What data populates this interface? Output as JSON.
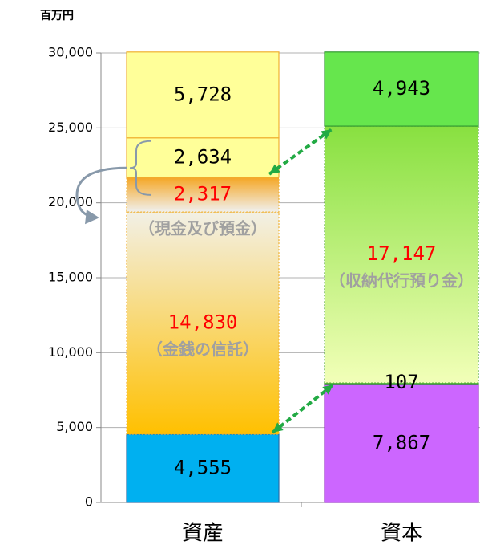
{
  "chart_data": {
    "type": "stacked_bar",
    "y_label": "百万円",
    "ylim": [
      0,
      30000
    ],
    "yticks": [
      0,
      {
        "value": 5000,
        "label": "5,000"
      },
      {
        "value": 10000,
        "label": "10,000"
      },
      {
        "value": 15000,
        "label": "15,000"
      },
      {
        "value": 20000,
        "label": "20,000"
      },
      {
        "value": 25000,
        "label": "25,000"
      },
      {
        "value": 30000,
        "label": "30,000"
      }
    ],
    "grid": true,
    "categories": [
      "資産",
      "資本"
    ],
    "stacks": [
      {
        "segments": [
          {
            "value": 4555,
            "value_label": "4,555",
            "color": "#00b0f0",
            "border": "#2a6fa8",
            "label_color": "#000"
          },
          {
            "value": 14830,
            "value_label": "14,830",
            "color": [
              "#f2f0e6",
              "#ffc000"
            ],
            "border": "#f0b030",
            "label_color": "#ff0000",
            "annotation": "（金銭の信託）"
          },
          {
            "value": 2317,
            "value_label": "2,317",
            "color": [
              "#f5a623",
              "#f0f0ee"
            ],
            "border": "#f0b030",
            "label_color": "#ff0000",
            "annotation": "（現金及び預金）"
          },
          {
            "value": 2634,
            "value_label": "2,634",
            "color": "#ffff99",
            "border": "#f0b030",
            "label_color": "#000"
          },
          {
            "value": 5728,
            "value_label": "5,728",
            "color": "#ffff99",
            "border": "#f0b030",
            "label_color": "#000"
          }
        ]
      },
      {
        "segments": [
          {
            "value": 7867,
            "value_label": "7,867",
            "color": "#cc66ff",
            "border": "#9933cc",
            "label_color": "#000"
          },
          {
            "value": 107,
            "value_label": "107",
            "color": "#66dd44",
            "border": "#339933",
            "label_color": "#000"
          },
          {
            "value": 17147,
            "value_label": "17,147",
            "color": [
              "#88e040",
              "#f2ffb8"
            ],
            "border": "#55aa33",
            "label_color": "#ff0000",
            "annotation": "（収納代行預り金）"
          },
          {
            "value": 4943,
            "value_label": "4,943",
            "color": "#66e64d",
            "border": "#339933",
            "label_color": "#000"
          }
        ]
      }
    ]
  }
}
